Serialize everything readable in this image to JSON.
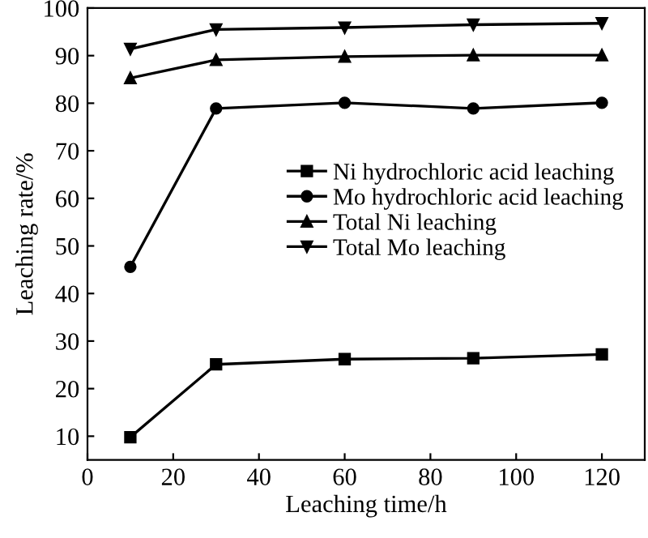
{
  "chart_data": {
    "type": "line",
    "xlabel": "Leaching time/h",
    "ylabel": "Leaching rate/%",
    "x": [
      10,
      30,
      60,
      90,
      120
    ],
    "series": [
      {
        "name": "Ni hydrochloric acid leaching",
        "color": "#000000",
        "marker": "square",
        "values": [
          9.8,
          25.1,
          26.2,
          26.4,
          27.2
        ]
      },
      {
        "name": "Mo hydrochloric acid leaching",
        "color": "#000000",
        "marker": "circle",
        "values": [
          45.6,
          78.9,
          80.1,
          78.9,
          80.1
        ]
      },
      {
        "name": "Total Ni leaching",
        "color": "#000000",
        "marker": "triangle",
        "values": [
          85.3,
          89.1,
          89.8,
          90.1,
          90.1
        ]
      },
      {
        "name": "Total Mo leaching",
        "color": "#000000",
        "marker": "triangle_down",
        "values": [
          91.4,
          95.5,
          95.9,
          96.5,
          96.8
        ]
      }
    ],
    "xlim": [
      0,
      130
    ],
    "xticks": [
      0,
      20,
      40,
      60,
      80,
      100,
      120
    ],
    "ylim": [
      5,
      100
    ],
    "yticks": [
      10,
      20,
      30,
      40,
      50,
      60,
      70,
      80,
      90,
      100
    ],
    "grid": false,
    "legend": "center right",
    "line_style": "solid"
  }
}
